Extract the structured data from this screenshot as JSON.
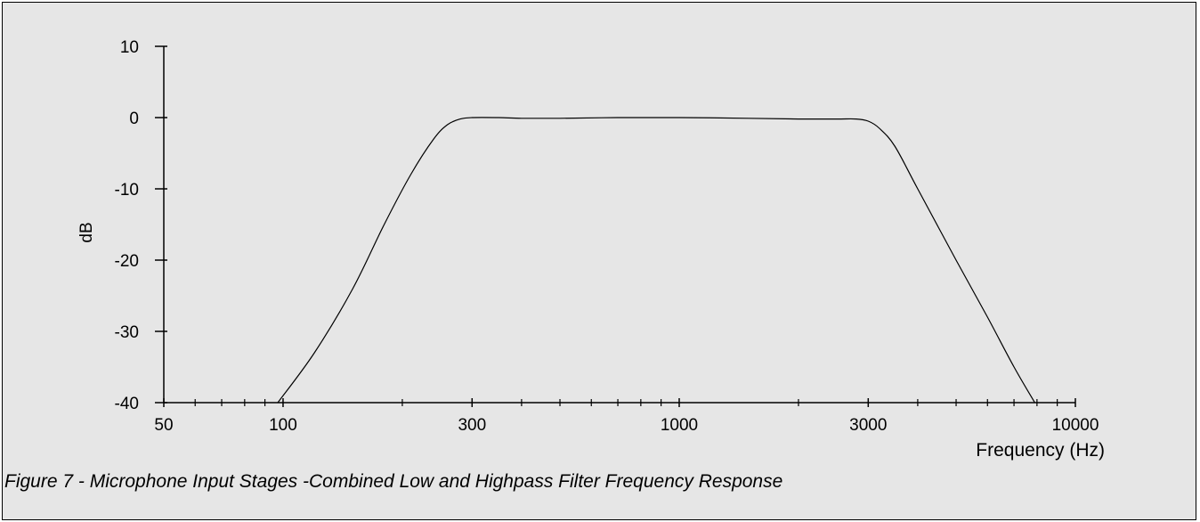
{
  "caption": "Figure 7  -  Microphone Input Stages -Combined Low and Highpass Filter Frequency Response",
  "colors": {
    "background": "#e6e6e6",
    "line": "#000000"
  },
  "chart_data": {
    "type": "line",
    "title": "",
    "xlabel": "Frequency  (Hz)",
    "ylabel": "dB",
    "xscale": "log",
    "xlim": [
      50,
      10000
    ],
    "ylim": [
      -40,
      10
    ],
    "x_tick_labels": [
      "50",
      "100",
      "300",
      "1000",
      "3000",
      "10000"
    ],
    "x_tick_values": [
      50,
      100,
      300,
      1000,
      3000,
      10000
    ],
    "x_minor_ticks": [
      60,
      70,
      80,
      90,
      200,
      400,
      500,
      600,
      700,
      800,
      900,
      2000,
      4000,
      5000,
      6000,
      7000,
      8000,
      9000
    ],
    "y_ticks": [
      10,
      0,
      -10,
      -20,
      -30,
      -40
    ],
    "grid": false,
    "legend": "none",
    "series": [
      {
        "x": [
          97,
          120,
          150,
          180,
          210,
          240,
          260,
          280,
          300,
          350,
          400,
          500,
          700,
          1000,
          1500,
          2000,
          2500,
          2800,
          3000,
          3200,
          3500,
          4000,
          5000,
          6000,
          7000,
          7900
        ],
        "y": [
          -40,
          -33,
          -24,
          -15,
          -8,
          -3,
          -1,
          -0.2,
          0,
          0,
          -0.1,
          -0.1,
          0,
          0,
          -0.1,
          -0.2,
          -0.2,
          -0.2,
          -0.5,
          -1.5,
          -4,
          -10,
          -20,
          -28,
          -35,
          -40
        ]
      }
    ]
  }
}
